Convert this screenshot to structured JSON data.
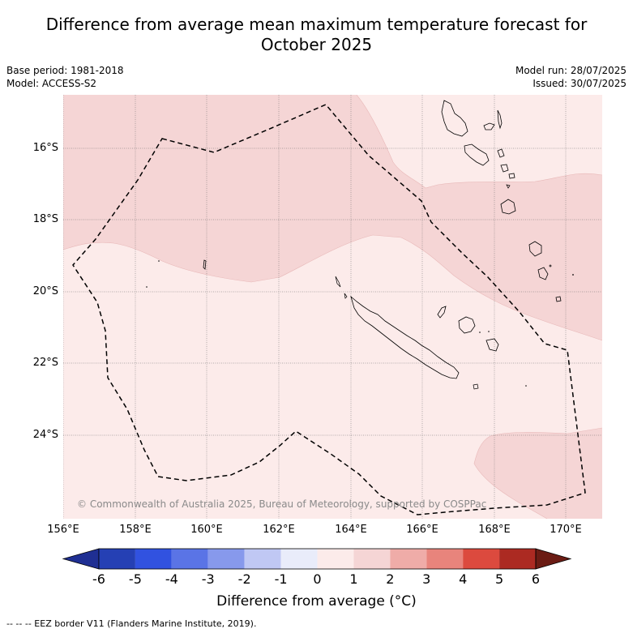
{
  "title_line1": "Difference from average mean maximum temperature forecast for",
  "title_line2": "October 2025",
  "base_period": "Base period: 1981-2018",
  "model": "Model: ACCESS-S2",
  "model_run": "Model run: 28/07/2025",
  "issued": "Issued: 30/07/2025",
  "lat_labels": [
    "16°S",
    "18°S",
    "20°S",
    "22°S",
    "24°S"
  ],
  "lon_labels": [
    "156°E",
    "158°E",
    "160°E",
    "162°E",
    "164°E",
    "166°E",
    "168°E",
    "170°E"
  ],
  "copyright": "© Commonwealth of Australia 2025, Bureau of Meteorology, supported by COSPPac",
  "colorbar": {
    "ticks": [
      "-6",
      "-5",
      "-4",
      "-3",
      "-2",
      "-1",
      "0",
      "1",
      "2",
      "3",
      "4",
      "5",
      "6"
    ],
    "colors": [
      "#1f2f93",
      "#2540b4",
      "#3152e0",
      "#5a74e6",
      "#8799ec",
      "#c0c8f4",
      "#e9ecfa",
      "#fcebea",
      "#f5d5d5",
      "#efaca8",
      "#e8847c",
      "#dc4a3e",
      "#ac2a22",
      "#6b1c14"
    ],
    "label": "Difference from average (°C)"
  },
  "legend_note": "-- -- -- EEZ border V11 (Flanders Marine Institute, 2019).",
  "map_colors": {
    "band_0_1": "#fcebea",
    "band_1_2": "#f5d5d5"
  }
}
